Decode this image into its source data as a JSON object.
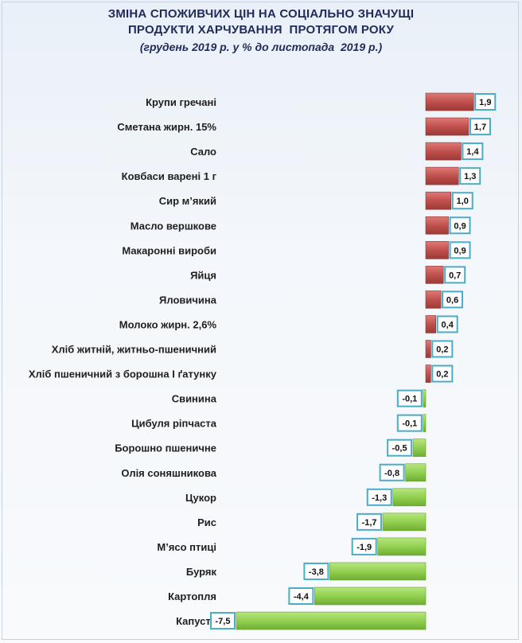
{
  "header": {
    "line1": "ЗМІНА СПОЖИВЧИХ ЦІН НА СОЦІАЛЬНО ЗНАЧУЩІ",
    "line2": "ПРОДУКТИ ХАРЧУВАННЯ  ПРОТЯГОМ РОКУ",
    "line3": "(грудень 2019 р. у % до листопада  2019 р.)"
  },
  "colors": {
    "positive": "#c0504d",
    "negative": "#92d050",
    "label_border": "#4bacc6"
  },
  "chart_data": {
    "type": "bar",
    "orientation": "horizontal",
    "title": "ЗМІНА СПОЖИВЧИХ ЦІН НА СОЦІАЛЬНО ЗНАЧУЩІ ПРОДУКТИ ХАРЧУВАННЯ  ПРОТЯГОМ РОКУ",
    "subtitle": "(грудень 2019 р. у % до листопада  2019 р.)",
    "categories": [
      "Крупи гречані",
      "Сметана жирн. 15%",
      "Сало",
      "Ковбаси варені 1 г",
      "Сир м’який",
      "Масло вершкове",
      "Макаронні вироби",
      "Яйця",
      "Яловичина",
      "Молоко жирн. 2,6%",
      "Хліб житній, житньо-пшеничний",
      "Хліб пшеничний з борошна І ґатунку",
      "Свинина",
      "Цибуля ріпчаста",
      "Борошно пшеничне",
      "Олія соняшникова",
      "Цукор",
      "Рис",
      "М’ясо птиці",
      "Буряк",
      "Картопля",
      "Капуста"
    ],
    "values": [
      1.9,
      1.7,
      1.4,
      1.3,
      1.0,
      0.9,
      0.9,
      0.7,
      0.6,
      0.4,
      0.2,
      0.2,
      -0.1,
      -0.1,
      -0.5,
      -0.8,
      -1.3,
      -1.7,
      -1.9,
      -3.8,
      -4.4,
      -7.5
    ],
    "value_labels": [
      "1,9",
      "1,7",
      "1,4",
      "1,3",
      "1,0",
      "0,9",
      "0,9",
      "0,7",
      "0,6",
      "0,4",
      "0,2",
      "0,2",
      "-0,1",
      "-0,1",
      "-0,5",
      "-0,8",
      "-1,3",
      "-1,7",
      "-1,9",
      "-3,8",
      "-4,4",
      "-7,5"
    ],
    "xlabel": "",
    "ylabel": "",
    "xlim": [
      -7.5,
      1.9
    ],
    "grid": false,
    "legend": false
  }
}
